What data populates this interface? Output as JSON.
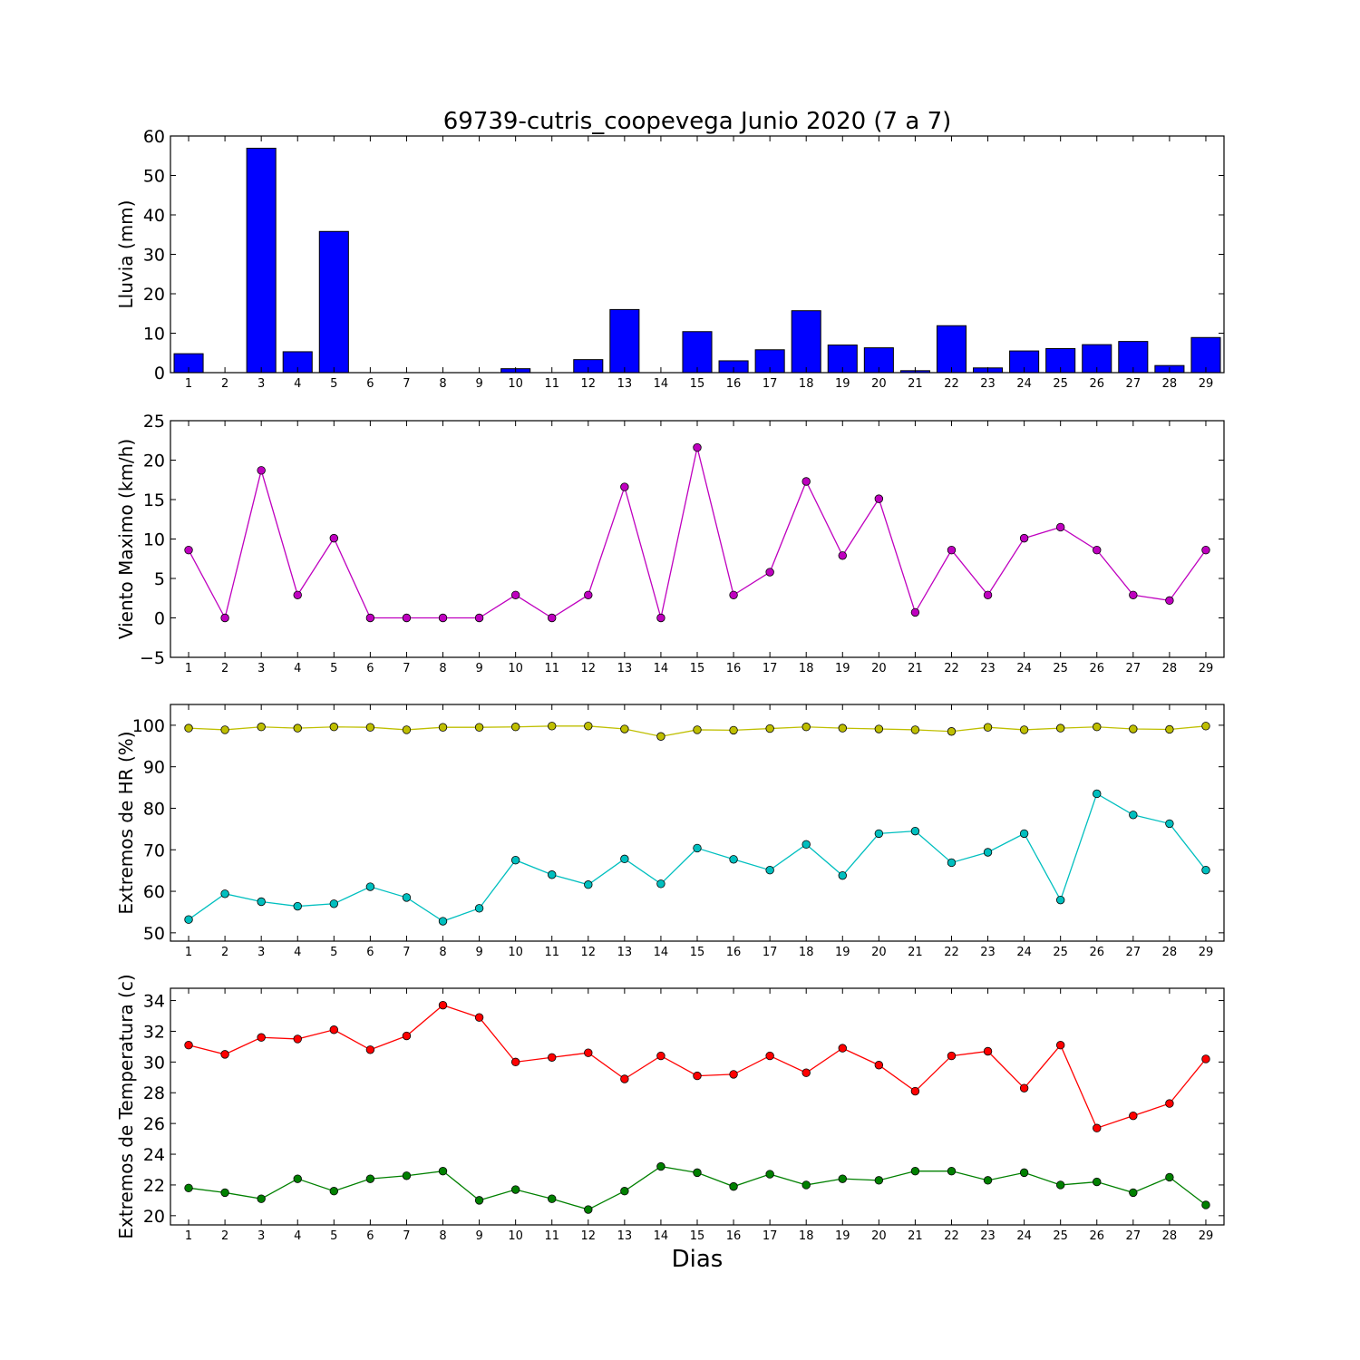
{
  "title": "69739-cutris_coopevega Junio 2020  (7 a 7)",
  "xlabel": "Dias",
  "chart_data": [
    {
      "type": "bar",
      "ylabel": "Lluvia (mm)",
      "ylim": [
        0,
        60
      ],
      "yticks": [
        0,
        10,
        20,
        30,
        40,
        50,
        60
      ],
      "categories": [
        "1",
        "2",
        "3",
        "4",
        "5",
        "6",
        "7",
        "8",
        "9",
        "10",
        "11",
        "12",
        "13",
        "14",
        "15",
        "16",
        "17",
        "18",
        "19",
        "20",
        "21",
        "22",
        "23",
        "24",
        "25",
        "26",
        "27",
        "28",
        "29"
      ],
      "series": [
        {
          "color": "#0000ff",
          "values": [
            4.8,
            0,
            56.9,
            5.3,
            35.8,
            0,
            0,
            0,
            0,
            1.0,
            0,
            3.3,
            16.0,
            0,
            10.4,
            3.0,
            5.8,
            15.7,
            7.0,
            6.3,
            0.5,
            11.9,
            1.2,
            5.5,
            6.1,
            7.1,
            7.9,
            1.8,
            8.9
          ]
        }
      ]
    },
    {
      "type": "line",
      "ylabel": "Viento Maximo (km/h)",
      "ylim": [
        -5,
        25
      ],
      "yticks": [
        -5,
        0,
        5,
        10,
        15,
        20,
        25
      ],
      "categories": [
        "1",
        "2",
        "3",
        "4",
        "5",
        "6",
        "7",
        "8",
        "9",
        "10",
        "11",
        "12",
        "13",
        "14",
        "15",
        "16",
        "17",
        "18",
        "19",
        "20",
        "21",
        "22",
        "23",
        "24",
        "25",
        "26",
        "27",
        "28",
        "29"
      ],
      "series": [
        {
          "color": "#bf00bf",
          "values": [
            8.6,
            0,
            18.7,
            2.9,
            10.1,
            0,
            0,
            0,
            0,
            2.9,
            0,
            2.9,
            16.6,
            0,
            21.6,
            2.9,
            5.8,
            17.3,
            7.9,
            15.1,
            0.7,
            8.6,
            2.9,
            10.1,
            11.5,
            8.6,
            2.9,
            2.2,
            8.6
          ]
        }
      ]
    },
    {
      "type": "line",
      "ylabel": "Extremos de HR (%)",
      "ylim": [
        48,
        105
      ],
      "yticks": [
        50,
        60,
        70,
        80,
        90,
        100
      ],
      "categories": [
        "1",
        "2",
        "3",
        "4",
        "5",
        "6",
        "7",
        "8",
        "9",
        "10",
        "11",
        "12",
        "13",
        "14",
        "15",
        "16",
        "17",
        "18",
        "19",
        "20",
        "21",
        "22",
        "23",
        "24",
        "25",
        "26",
        "27",
        "28",
        "29"
      ],
      "series": [
        {
          "color": "#bfbf00",
          "values": [
            99.3,
            98.9,
            99.6,
            99.3,
            99.6,
            99.5,
            98.9,
            99.5,
            99.5,
            99.6,
            99.8,
            99.8,
            99.1,
            97.3,
            98.9,
            98.8,
            99.2,
            99.6,
            99.3,
            99.1,
            98.9,
            98.5,
            99.5,
            98.9,
            99.3,
            99.6,
            99.1,
            99.0,
            99.8
          ]
        },
        {
          "color": "#00bfbf",
          "values": [
            53.2,
            59.4,
            57.5,
            56.4,
            57.0,
            61.1,
            58.5,
            52.8,
            55.9,
            67.5,
            64.0,
            61.6,
            67.8,
            61.8,
            70.4,
            67.7,
            65.1,
            71.3,
            63.8,
            73.9,
            74.5,
            66.9,
            69.4,
            73.9,
            57.9,
            83.5,
            78.4,
            76.3,
            65.1
          ]
        }
      ]
    },
    {
      "type": "line",
      "ylabel": "Extremos de Temperatura (c)",
      "ylim": [
        19.4,
        34.8
      ],
      "yticks": [
        20,
        22,
        24,
        26,
        28,
        30,
        32,
        34
      ],
      "categories": [
        "1",
        "2",
        "3",
        "4",
        "5",
        "6",
        "7",
        "8",
        "9",
        "10",
        "11",
        "12",
        "13",
        "14",
        "15",
        "16",
        "17",
        "18",
        "19",
        "20",
        "21",
        "22",
        "23",
        "24",
        "25",
        "26",
        "27",
        "28",
        "29"
      ],
      "series": [
        {
          "color": "#ff0000",
          "values": [
            31.1,
            30.5,
            31.6,
            31.5,
            32.1,
            30.8,
            31.7,
            33.7,
            32.9,
            30.0,
            30.3,
            30.6,
            28.9,
            30.4,
            29.1,
            29.2,
            30.4,
            29.3,
            30.9,
            29.8,
            28.1,
            30.4,
            30.7,
            28.3,
            31.1,
            25.7,
            26.5,
            27.3,
            30.2
          ]
        },
        {
          "color": "#008000",
          "values": [
            21.8,
            21.5,
            21.1,
            22.4,
            21.6,
            22.4,
            22.6,
            22.9,
            21.0,
            21.7,
            21.1,
            20.4,
            21.6,
            23.2,
            22.8,
            21.9,
            22.7,
            22.0,
            22.4,
            22.3,
            22.9,
            22.9,
            22.3,
            22.8,
            22.0,
            22.2,
            21.5,
            22.5,
            20.7
          ]
        }
      ]
    }
  ]
}
